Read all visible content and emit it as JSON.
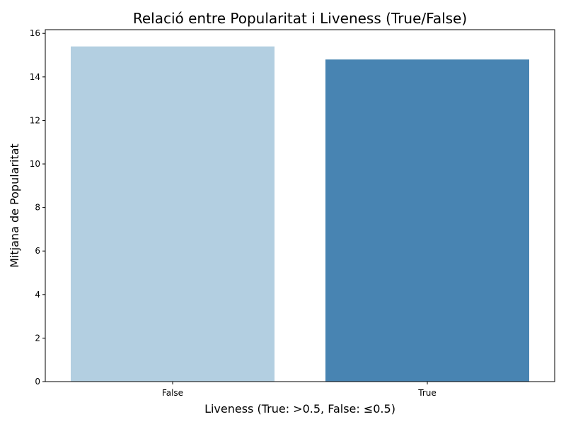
{
  "chart_data": {
    "type": "bar",
    "title": "Relació entre Popularitat i Liveness (True/False)",
    "xlabel": "Liveness (True: >0.5, False: ≤0.5)",
    "ylabel": "Mitjana de Popularitat",
    "categories": [
      "False",
      "True"
    ],
    "values": [
      15.4,
      14.8
    ],
    "colors": [
      "#b3cfe1",
      "#4884b2"
    ],
    "ylim": [
      0,
      16.17
    ],
    "yticks": [
      0,
      2,
      4,
      6,
      8,
      10,
      12,
      14,
      16
    ],
    "grid": false,
    "legend": "none"
  }
}
